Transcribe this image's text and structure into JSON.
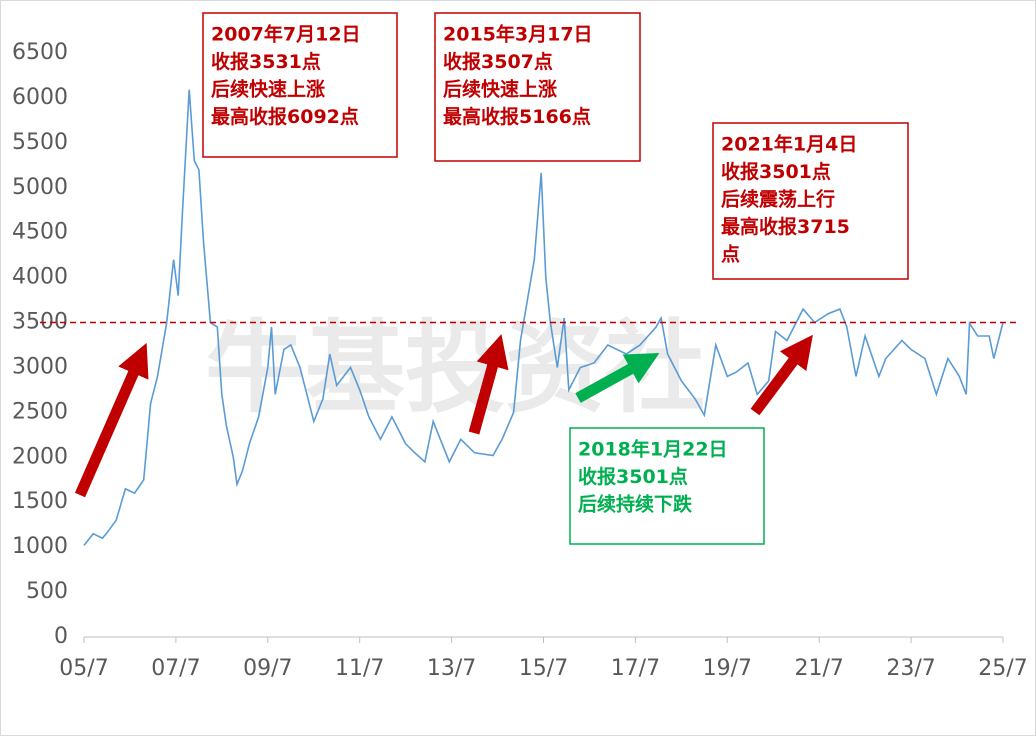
{
  "chart_data": {
    "type": "line",
    "watermark": "牛基投资社",
    "x": [
      2005.5,
      2005.7,
      2005.9,
      2006.0,
      2006.2,
      2006.4,
      2006.6,
      2006.8,
      2006.95,
      2007.1,
      2007.3,
      2007.45,
      2007.55,
      2007.65,
      2007.79,
      2007.9,
      2008.0,
      2008.1,
      2008.25,
      2008.4,
      2008.5,
      2008.6,
      2008.75,
      2008.83,
      2008.95,
      2009.1,
      2009.3,
      2009.5,
      2009.58,
      2009.66,
      2009.85,
      2010.0,
      2010.2,
      2010.4,
      2010.5,
      2010.7,
      2010.85,
      2011.0,
      2011.3,
      2011.5,
      2011.7,
      2011.95,
      2012.2,
      2012.5,
      2012.7,
      2012.92,
      2013.1,
      2013.45,
      2013.7,
      2014.0,
      2014.4,
      2014.6,
      2014.85,
      2015.0,
      2015.3,
      2015.45,
      2015.55,
      2015.65,
      2015.8,
      2015.95,
      2016.05,
      2016.3,
      2016.6,
      2016.9,
      2017.3,
      2017.6,
      2017.95,
      2018.06,
      2018.2,
      2018.5,
      2018.8,
      2019.0,
      2019.25,
      2019.5,
      2019.7,
      2019.95,
      2020.15,
      2020.4,
      2020.55,
      2020.8,
      2021.0,
      2021.15,
      2021.4,
      2021.7,
      2021.95,
      2022.1,
      2022.3,
      2022.5,
      2022.8,
      2022.95,
      2023.3,
      2023.5,
      2023.8,
      2024.05,
      2024.3,
      2024.55,
      2024.7,
      2024.77,
      2024.95,
      2025.2,
      2025.3,
      2025.5
    ],
    "series": [
      {
        "color": "#5b9bd5",
        "values": [
          1020,
          1150,
          1100,
          1160,
          1300,
          1650,
          1600,
          1750,
          2600,
          2900,
          3500,
          4200,
          3800,
          4800,
          6092,
          5300,
          5200,
          4400,
          3500,
          3450,
          2700,
          2350,
          2000,
          1700,
          1850,
          2150,
          2450,
          3000,
          3450,
          2700,
          3200,
          3250,
          3000,
          2600,
          2400,
          2650,
          3150,
          2800,
          3000,
          2750,
          2450,
          2200,
          2450,
          2150,
          2050,
          1950,
          2400,
          1950,
          2200,
          2050,
          2020,
          2200,
          2500,
          3300,
          4200,
          5166,
          4000,
          3500,
          3000,
          3550,
          2750,
          3000,
          3050,
          3250,
          3150,
          3250,
          3450,
          3550,
          3150,
          2850,
          2650,
          2470,
          3250,
          2900,
          2950,
          3050,
          2700,
          2850,
          3400,
          3300,
          3500,
          3650,
          3500,
          3600,
          3650,
          3450,
          2900,
          3350,
          2900,
          3100,
          3300,
          3200,
          3100,
          2700,
          3100,
          2900,
          2700,
          3490,
          3350,
          3350,
          3100,
          3500
        ]
      }
    ],
    "xlim": [
      2005.5,
      2025.5
    ],
    "xticks": [
      {
        "value": 2005.5,
        "label": "05/7"
      },
      {
        "value": 2007.5,
        "label": "07/7"
      },
      {
        "value": 2009.5,
        "label": "09/7"
      },
      {
        "value": 2011.5,
        "label": "11/7"
      },
      {
        "value": 2013.5,
        "label": "13/7"
      },
      {
        "value": 2015.5,
        "label": "15/7"
      },
      {
        "value": 2017.5,
        "label": "17/7"
      },
      {
        "value": 2019.5,
        "label": "19/7"
      },
      {
        "value": 2021.5,
        "label": "21/7"
      },
      {
        "value": 2023.5,
        "label": "23/7"
      },
      {
        "value": 2025.5,
        "label": "25/7"
      }
    ],
    "ylim": [
      0,
      6500
    ],
    "yticks": [
      0,
      500,
      1000,
      1500,
      2000,
      2500,
      3000,
      3500,
      4000,
      4500,
      5000,
      5500,
      6000,
      6500
    ],
    "reference_line": {
      "value": 3500,
      "color": "#c00000"
    },
    "annotations": [
      {
        "color": "#c00000",
        "lines": [
          "2007年7月12日",
          "收报3531点",
          "后续快速上涨",
          "最高收报6092点"
        ]
      },
      {
        "color": "#c00000",
        "lines": [
          "2015年3月17日",
          "收报3507点",
          "后续快速上涨",
          "最高收报5166点"
        ]
      },
      {
        "color": "#c00000",
        "lines": [
          "2021年1月4日",
          "收报3501点",
          "后续震荡上行",
          "最高收报3715",
          "点"
        ]
      },
      {
        "color": "#00b050",
        "lines": [
          "2018年1月22日",
          "收报3501点",
          "后续持续下跌"
        ]
      }
    ]
  }
}
